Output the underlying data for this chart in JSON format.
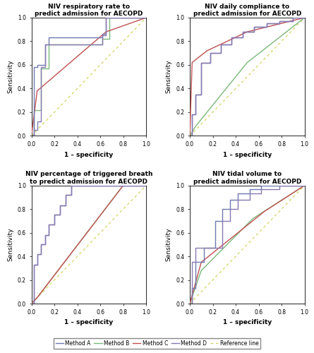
{
  "titles": [
    "NIV respiratory rate to\npredict admission for AECOPD",
    "NIV daily compliance to\npredict admission for AECOPD",
    "NIV percentage of triggered breath\nto predict admission for AECOPD",
    "NIV tidal volume to\npredict admission for AECOPD"
  ],
  "colors": {
    "method_A": "#6e78b0",
    "method_B": "#7ab87a",
    "method_C": "#c05050",
    "method_D": "#8878b0",
    "reference": "#d4d460"
  },
  "curves": {
    "plot0": {
      "A": {
        "x": [
          0,
          0.02,
          0.02,
          0.05,
          0.05,
          0.12,
          0.12,
          0.15,
          0.15,
          0.62,
          0.62,
          0.65,
          0.65,
          1.0
        ],
        "y": [
          0,
          0,
          0.58,
          0.58,
          0.6,
          0.6,
          0.77,
          0.77,
          0.83,
          0.83,
          0.86,
          0.86,
          1.0,
          1.0
        ]
      },
      "B": {
        "x": [
          0,
          0.02,
          0.02,
          0.08,
          0.08,
          0.15,
          0.15,
          0.62,
          0.62,
          0.68,
          0.68,
          1.0
        ],
        "y": [
          0,
          0,
          0.22,
          0.22,
          0.57,
          0.57,
          0.77,
          0.77,
          0.82,
          0.82,
          1.0,
          1.0
        ]
      },
      "C": {
        "x": [
          0,
          0.05,
          0.65,
          1.0
        ],
        "y": [
          0,
          0.38,
          0.88,
          1.0
        ]
      },
      "D": {
        "x": [
          0,
          0.02,
          0.02,
          0.05,
          0.05,
          0.08,
          0.08,
          0.12,
          0.12,
          0.62,
          0.62,
          0.65,
          0.65,
          1.0
        ],
        "y": [
          0,
          0,
          0.05,
          0.05,
          0.12,
          0.12,
          0.58,
          0.58,
          0.77,
          0.77,
          0.85,
          0.85,
          1.0,
          1.0
        ]
      }
    },
    "plot1": {
      "A": {
        "x": [
          0,
          0.02,
          0.02,
          0.05,
          0.05,
          0.1,
          0.1,
          0.18,
          0.18,
          0.27,
          0.27,
          0.36,
          0.36,
          0.46,
          0.46,
          0.56,
          0.56,
          0.67,
          0.67,
          0.78,
          0.78,
          0.9,
          0.9,
          1.0
        ],
        "y": [
          0,
          0,
          0.18,
          0.18,
          0.35,
          0.35,
          0.62,
          0.62,
          0.7,
          0.7,
          0.77,
          0.77,
          0.83,
          0.83,
          0.88,
          0.88,
          0.92,
          0.92,
          0.95,
          0.95,
          0.97,
          0.97,
          1.0,
          1.0
        ]
      },
      "B": {
        "x": [
          0,
          0.05,
          0.5,
          1.0
        ],
        "y": [
          0,
          0.08,
          0.62,
          1.0
        ]
      },
      "C": {
        "x": [
          0,
          0.02,
          0.15,
          0.5,
          1.0
        ],
        "y": [
          0,
          0.62,
          0.72,
          0.88,
          1.0
        ]
      },
      "D": {
        "x": [
          0,
          0.02,
          0.02,
          0.05,
          0.05,
          0.1,
          0.1,
          0.18,
          0.18,
          0.27,
          0.27,
          0.36,
          0.36,
          0.46,
          0.46,
          0.56,
          0.56,
          0.67,
          0.67,
          0.78,
          0.78,
          0.9,
          0.9,
          1.0
        ],
        "y": [
          0,
          0,
          0.18,
          0.18,
          0.35,
          0.35,
          0.62,
          0.62,
          0.7,
          0.7,
          0.77,
          0.77,
          0.83,
          0.83,
          0.88,
          0.88,
          0.92,
          0.92,
          0.95,
          0.95,
          0.97,
          0.97,
          1.0,
          1.0
        ]
      }
    },
    "plot2": {
      "A": {
        "x": [
          0,
          0.02,
          0.02,
          0.05,
          0.05,
          0.08,
          0.08,
          0.12,
          0.12,
          0.15,
          0.15,
          0.2,
          0.2,
          0.25,
          0.25,
          0.3,
          0.3,
          0.35,
          0.35,
          0.4,
          0.4,
          0.8,
          0.8,
          1.0
        ],
        "y": [
          0,
          0,
          0.33,
          0.33,
          0.42,
          0.42,
          0.5,
          0.5,
          0.58,
          0.58,
          0.67,
          0.67,
          0.75,
          0.75,
          0.83,
          0.83,
          0.92,
          0.92,
          1.0,
          1.0,
          1.0,
          1.0,
          1.0,
          1.0
        ]
      },
      "B": {
        "x": [
          0,
          0.05,
          0.8,
          1.0
        ],
        "y": [
          0,
          0.05,
          1.0,
          1.0
        ]
      },
      "C": {
        "x": [
          0,
          0.05,
          0.8,
          1.0
        ],
        "y": [
          0,
          0.05,
          1.0,
          1.0
        ]
      },
      "D": {
        "x": [
          0,
          0.02,
          0.02,
          0.05,
          0.05,
          0.08,
          0.08,
          0.12,
          0.12,
          0.15,
          0.15,
          0.2,
          0.2,
          0.25,
          0.25,
          0.3,
          0.3,
          0.35,
          0.35,
          0.4,
          0.4,
          0.8,
          0.8,
          1.0
        ],
        "y": [
          0,
          0,
          0.33,
          0.33,
          0.42,
          0.42,
          0.5,
          0.5,
          0.58,
          0.58,
          0.67,
          0.67,
          0.75,
          0.75,
          0.83,
          0.83,
          0.92,
          0.92,
          1.0,
          1.0,
          1.0,
          1.0,
          1.0,
          1.0
        ]
      }
    },
    "plot3": {
      "A": {
        "x": [
          0,
          0.02,
          0.02,
          0.05,
          0.05,
          0.12,
          0.12,
          0.22,
          0.22,
          0.28,
          0.28,
          0.35,
          0.35,
          0.42,
          0.42,
          0.52,
          0.52,
          0.62,
          0.62,
          0.78,
          0.78,
          0.9,
          0.9,
          1.0
        ],
        "y": [
          0,
          0,
          0.13,
          0.13,
          0.35,
          0.35,
          0.47,
          0.47,
          0.7,
          0.7,
          0.8,
          0.8,
          0.88,
          0.88,
          0.93,
          0.93,
          0.97,
          0.97,
          1.0,
          1.0,
          1.0,
          1.0,
          1.0,
          1.0
        ]
      },
      "B": {
        "x": [
          0,
          0.1,
          0.55,
          1.0
        ],
        "y": [
          0,
          0.28,
          0.72,
          1.0
        ]
      },
      "C": {
        "x": [
          0,
          0.1,
          0.65,
          1.0
        ],
        "y": [
          0,
          0.35,
          0.78,
          1.0
        ]
      },
      "D": {
        "x": [
          0,
          0.02,
          0.02,
          0.05,
          0.05,
          0.28,
          0.28,
          0.35,
          0.35,
          0.42,
          0.42,
          0.52,
          0.52,
          0.62,
          0.62,
          0.78,
          0.78,
          0.9,
          0.9,
          1.0
        ],
        "y": [
          0,
          0,
          0.35,
          0.35,
          0.47,
          0.47,
          0.7,
          0.7,
          0.8,
          0.8,
          0.88,
          0.88,
          0.93,
          0.93,
          0.97,
          0.97,
          1.0,
          1.0,
          1.0,
          1.0
        ]
      }
    }
  },
  "legend_labels": [
    "Method A",
    "Method B",
    "Method C",
    "Method D",
    "Reference line"
  ],
  "xlabel": "1 – specificity",
  "ylabel": "Sensitivity",
  "figsize": [
    4.45,
    5.0
  ],
  "dpi": 100
}
